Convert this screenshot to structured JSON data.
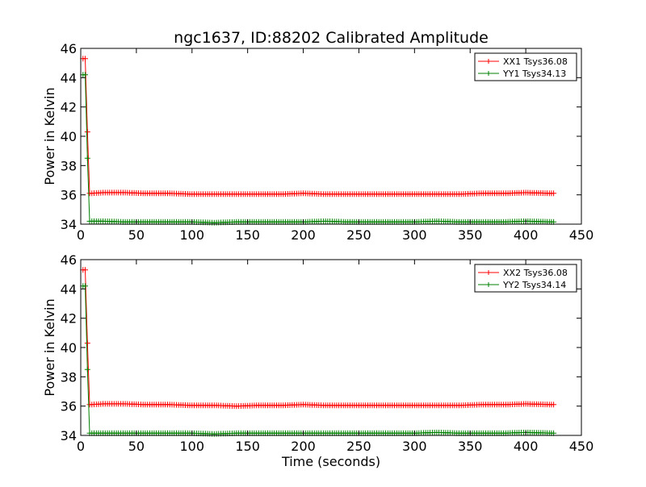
{
  "figure": {
    "title": "ngc1637, ID:88202 Calibrated Amplitude",
    "xlabel": "Time (seconds)"
  },
  "colors": {
    "series_a": "#ff0000",
    "series_b": "#008000"
  },
  "chart_data": [
    {
      "type": "line",
      "title": "ngc1637, ID:88202 Calibrated Amplitude",
      "xlabel": "",
      "ylabel": "Power in Kelvin",
      "xlim": [
        0,
        450
      ],
      "ylim": [
        34,
        46
      ],
      "xticks": [
        0,
        50,
        100,
        150,
        200,
        250,
        300,
        350,
        400,
        450
      ],
      "yticks": [
        34,
        36,
        38,
        40,
        42,
        44,
        46
      ],
      "grid": false,
      "legend": "top-right",
      "marker": "+",
      "series": [
        {
          "name": "XX1 Tsys36.08",
          "color": "#ff0000",
          "x": [
            2,
            4,
            6,
            8,
            20,
            40,
            60,
            80,
            100,
            120,
            140,
            160,
            180,
            200,
            220,
            240,
            260,
            280,
            300,
            320,
            340,
            360,
            380,
            400,
            425
          ],
          "y": [
            45.3,
            45.3,
            40.3,
            36.1,
            36.15,
            36.15,
            36.1,
            36.1,
            36.05,
            36.05,
            36.05,
            36.05,
            36.05,
            36.1,
            36.05,
            36.05,
            36.05,
            36.05,
            36.05,
            36.05,
            36.05,
            36.1,
            36.1,
            36.15,
            36.1
          ]
        },
        {
          "name": "YY1 Tsys34.13",
          "color": "#008000",
          "x": [
            2,
            4,
            6,
            8,
            20,
            40,
            60,
            80,
            100,
            120,
            140,
            160,
            180,
            200,
            220,
            240,
            260,
            280,
            300,
            320,
            340,
            360,
            380,
            400,
            425
          ],
          "y": [
            44.2,
            44.2,
            38.5,
            34.2,
            34.2,
            34.15,
            34.15,
            34.15,
            34.15,
            34.1,
            34.15,
            34.15,
            34.15,
            34.15,
            34.2,
            34.15,
            34.15,
            34.15,
            34.15,
            34.2,
            34.15,
            34.15,
            34.15,
            34.2,
            34.15
          ]
        }
      ]
    },
    {
      "type": "line",
      "title": "",
      "xlabel": "Time (seconds)",
      "ylabel": "Power in Kelvin",
      "xlim": [
        0,
        450
      ],
      "ylim": [
        34,
        46
      ],
      "xticks": [
        0,
        50,
        100,
        150,
        200,
        250,
        300,
        350,
        400,
        450
      ],
      "yticks": [
        34,
        36,
        38,
        40,
        42,
        44,
        46
      ],
      "grid": false,
      "legend": "top-right",
      "marker": "+",
      "series": [
        {
          "name": "XX2 Tsys36.08",
          "color": "#ff0000",
          "x": [
            2,
            4,
            6,
            8,
            20,
            40,
            60,
            80,
            100,
            120,
            140,
            160,
            180,
            200,
            220,
            240,
            260,
            280,
            300,
            320,
            340,
            360,
            380,
            400,
            425
          ],
          "y": [
            45.3,
            45.3,
            40.3,
            36.1,
            36.15,
            36.15,
            36.1,
            36.1,
            36.05,
            36.05,
            36.0,
            36.05,
            36.05,
            36.1,
            36.05,
            36.05,
            36.05,
            36.05,
            36.05,
            36.05,
            36.05,
            36.1,
            36.1,
            36.15,
            36.1
          ]
        },
        {
          "name": "YY2 Tsys34.14",
          "color": "#008000",
          "x": [
            2,
            4,
            6,
            8,
            20,
            40,
            60,
            80,
            100,
            120,
            140,
            160,
            180,
            200,
            220,
            240,
            260,
            280,
            300,
            320,
            340,
            360,
            380,
            400,
            425
          ],
          "y": [
            44.2,
            44.2,
            38.5,
            34.15,
            34.15,
            34.15,
            34.15,
            34.15,
            34.15,
            34.1,
            34.15,
            34.15,
            34.15,
            34.15,
            34.15,
            34.15,
            34.15,
            34.15,
            34.15,
            34.2,
            34.15,
            34.15,
            34.15,
            34.2,
            34.15
          ]
        }
      ]
    }
  ]
}
